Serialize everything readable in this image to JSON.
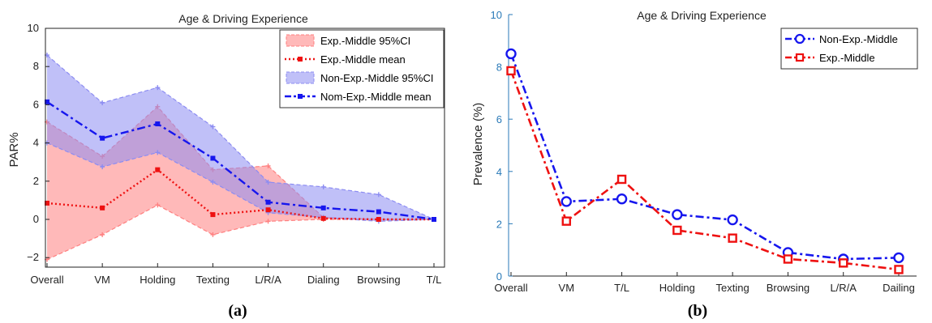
{
  "chart_data": [
    {
      "type": "area",
      "title": "Age & Driving Experience",
      "caption": "(a)",
      "ylabel": "PAR%",
      "xlabel": "",
      "ylim": [
        -2.5,
        10
      ],
      "yticks": [
        -2,
        0,
        2,
        4,
        6,
        8,
        10
      ],
      "grid": false,
      "legend_placement": "top-right",
      "categories": [
        "Overall",
        "VM",
        "Holding",
        "Texting",
        "L/R/A",
        "Dialing",
        "Browsing",
        "T/L"
      ],
      "series": [
        {
          "name": "Exp.-Middle 95%CI",
          "kind": "band",
          "color": "#ff8080",
          "upper": [
            5.1,
            3.3,
            5.9,
            2.6,
            2.8,
            0.1,
            0.0,
            0.0
          ],
          "lower": [
            -2.1,
            -0.8,
            0.75,
            -0.8,
            -0.1,
            0.0,
            0.0,
            0.0
          ]
        },
        {
          "name": "Exp.-Middle mean",
          "kind": "line",
          "style": "dotted",
          "color": "#ee1111",
          "values": [
            0.85,
            0.6,
            2.6,
            0.25,
            0.5,
            0.05,
            0.0,
            0.0
          ]
        },
        {
          "name": "Non-Exp.-Middle 95%CI",
          "kind": "band",
          "color": "#8c8cf2",
          "upper": [
            8.6,
            6.1,
            6.9,
            4.85,
            1.95,
            1.7,
            1.3,
            0.0
          ],
          "lower": [
            4.0,
            2.75,
            3.5,
            1.95,
            0.35,
            0.1,
            -0.1,
            0.0
          ]
        },
        {
          "name": "Nom-Exp.-Middle mean",
          "kind": "line",
          "style": "dashdot",
          "color": "#1616ee",
          "values": [
            6.15,
            4.25,
            5.0,
            3.2,
            0.9,
            0.6,
            0.4,
            0.0
          ]
        }
      ]
    },
    {
      "type": "line",
      "title": "Age & Driving Experience",
      "caption": "(b)",
      "ylabel": "Prevalence (%)",
      "xlabel": "",
      "ylim": [
        0,
        10
      ],
      "yticks": [
        0,
        2,
        4,
        6,
        8,
        10
      ],
      "grid": false,
      "legend_placement": "top-right",
      "categories": [
        "Overall",
        "VM",
        "T/L",
        "Holding",
        "Texting",
        "Browsing",
        "L/R/A",
        "Dailing"
      ],
      "series": [
        {
          "name": "Non-Exp.-Middle",
          "marker": "circle",
          "color": "#1616ee",
          "values": [
            8.5,
            2.85,
            2.95,
            2.35,
            2.15,
            0.9,
            0.65,
            0.7
          ]
        },
        {
          "name": "Exp.-Middle",
          "marker": "square",
          "color": "#ee1111",
          "values": [
            7.85,
            2.1,
            3.7,
            1.75,
            1.45,
            0.65,
            0.5,
            0.25
          ]
        }
      ]
    }
  ]
}
